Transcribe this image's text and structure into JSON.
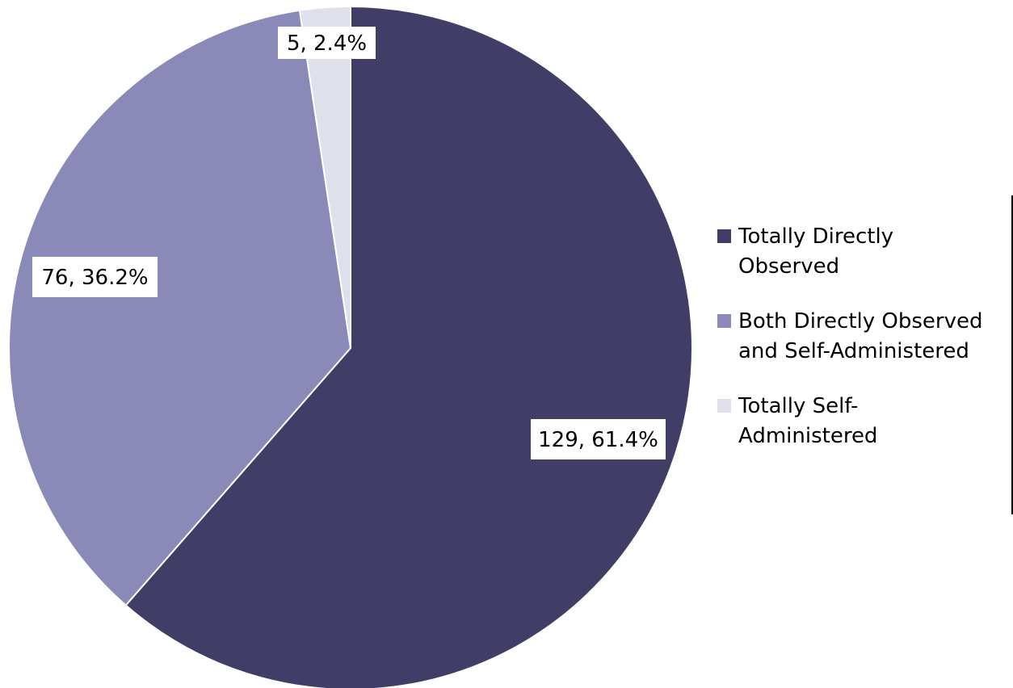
{
  "chart_data": {
    "type": "pie",
    "title": "",
    "slices": [
      {
        "name": "Totally Directly Observed",
        "value": 129,
        "percent": 61.4,
        "label": "129, 61.4%",
        "color": "#403e66"
      },
      {
        "name": "Both Directly Observed and Self-Administered",
        "value": 76,
        "percent": 36.2,
        "label": "76, 36.2%",
        "color": "#8a89b8"
      },
      {
        "name": "Totally Self-Administered",
        "value": 5,
        "percent": 2.4,
        "label": "5, 2.4%",
        "color": "#e0e0ec"
      }
    ],
    "legend": {
      "position": "right",
      "entries": [
        {
          "line1": "Totally Directly",
          "line2": "Observed",
          "color": "#403e66"
        },
        {
          "line1": "Both Directly Observed",
          "line2": "and Self-Administered",
          "color": "#8a89b8"
        },
        {
          "line1": "Totally Self-",
          "line2": "Administered",
          "color": "#e0e0ec"
        }
      ]
    },
    "start_angle": "12 o'clock",
    "direction": "clockwise"
  }
}
